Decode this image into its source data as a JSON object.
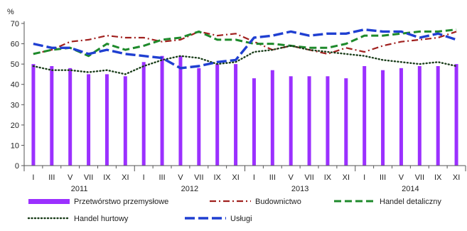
{
  "chart_data": {
    "type": "bar+line",
    "unit_label": "%",
    "ylim": [
      0,
      70
    ],
    "yticks": [
      0,
      10,
      20,
      30,
      40,
      50,
      60,
      70
    ],
    "grid": false,
    "legend_placement": "bottom",
    "month_tick_labels": [
      "I",
      "III",
      "V",
      "VII",
      "IX",
      "XI",
      "I",
      "III",
      "V",
      "VII",
      "IX",
      "XI",
      "I",
      "III",
      "V",
      "VII",
      "IX",
      "XI",
      "I",
      "III",
      "V",
      "VII",
      "IX",
      "XI"
    ],
    "year_labels": [
      "2011",
      "2012",
      "2013",
      "2014"
    ],
    "x": [
      "2011-01",
      "2011-03",
      "2011-05",
      "2011-07",
      "2011-09",
      "2011-11",
      "2012-01",
      "2012-03",
      "2012-05",
      "2012-07",
      "2012-09",
      "2012-11",
      "2013-01",
      "2013-03",
      "2013-05",
      "2013-07",
      "2013-09",
      "2013-11",
      "2014-01",
      "2014-03",
      "2014-05",
      "2014-07",
      "2014-09",
      "2014-11"
    ],
    "series": [
      {
        "name": "Przetwórstwo przemysłowe",
        "kind": "bar",
        "color": "#9b30ff",
        "values": [
          50,
          49,
          48,
          45,
          45,
          44,
          51,
          54,
          54,
          48,
          50,
          50,
          43,
          47,
          44,
          44,
          44,
          43,
          49,
          47,
          48,
          49,
          49,
          50
        ]
      },
      {
        "name": "Budownictwo",
        "kind": "line",
        "style": "dash-dot",
        "color": "#a0201e",
        "values": [
          55,
          57,
          61,
          62,
          64,
          63,
          63,
          61,
          62,
          66,
          64,
          65,
          61,
          57,
          59,
          57,
          55,
          58,
          56,
          59,
          61,
          62,
          63,
          66
        ]
      },
      {
        "name": "Handel detaliczny",
        "kind": "line",
        "style": "dashed",
        "color": "#1e8a2b",
        "values": [
          55,
          57,
          58,
          54,
          60,
          57,
          59,
          62,
          63,
          66,
          62,
          62,
          60,
          60,
          59,
          58,
          58,
          60,
          64,
          64,
          65,
          66,
          66,
          67
        ]
      },
      {
        "name": "Handel hurtowy",
        "kind": "line",
        "style": "dotted",
        "color": "#1a3d1a",
        "values": [
          49,
          47,
          47,
          46,
          47,
          45,
          49,
          52,
          54,
          53,
          50,
          51,
          56,
          57,
          59,
          57,
          56,
          55,
          54,
          52,
          51,
          50,
          51,
          49
        ]
      },
      {
        "name": "Usługi",
        "kind": "line",
        "style": "long-dash",
        "color": "#1f3fd1",
        "values": [
          60,
          58,
          58,
          55,
          57,
          55,
          54,
          53,
          48,
          49,
          51,
          52,
          63,
          64,
          66,
          64,
          65,
          65,
          67,
          66,
          66,
          63,
          65,
          62
        ]
      }
    ]
  }
}
